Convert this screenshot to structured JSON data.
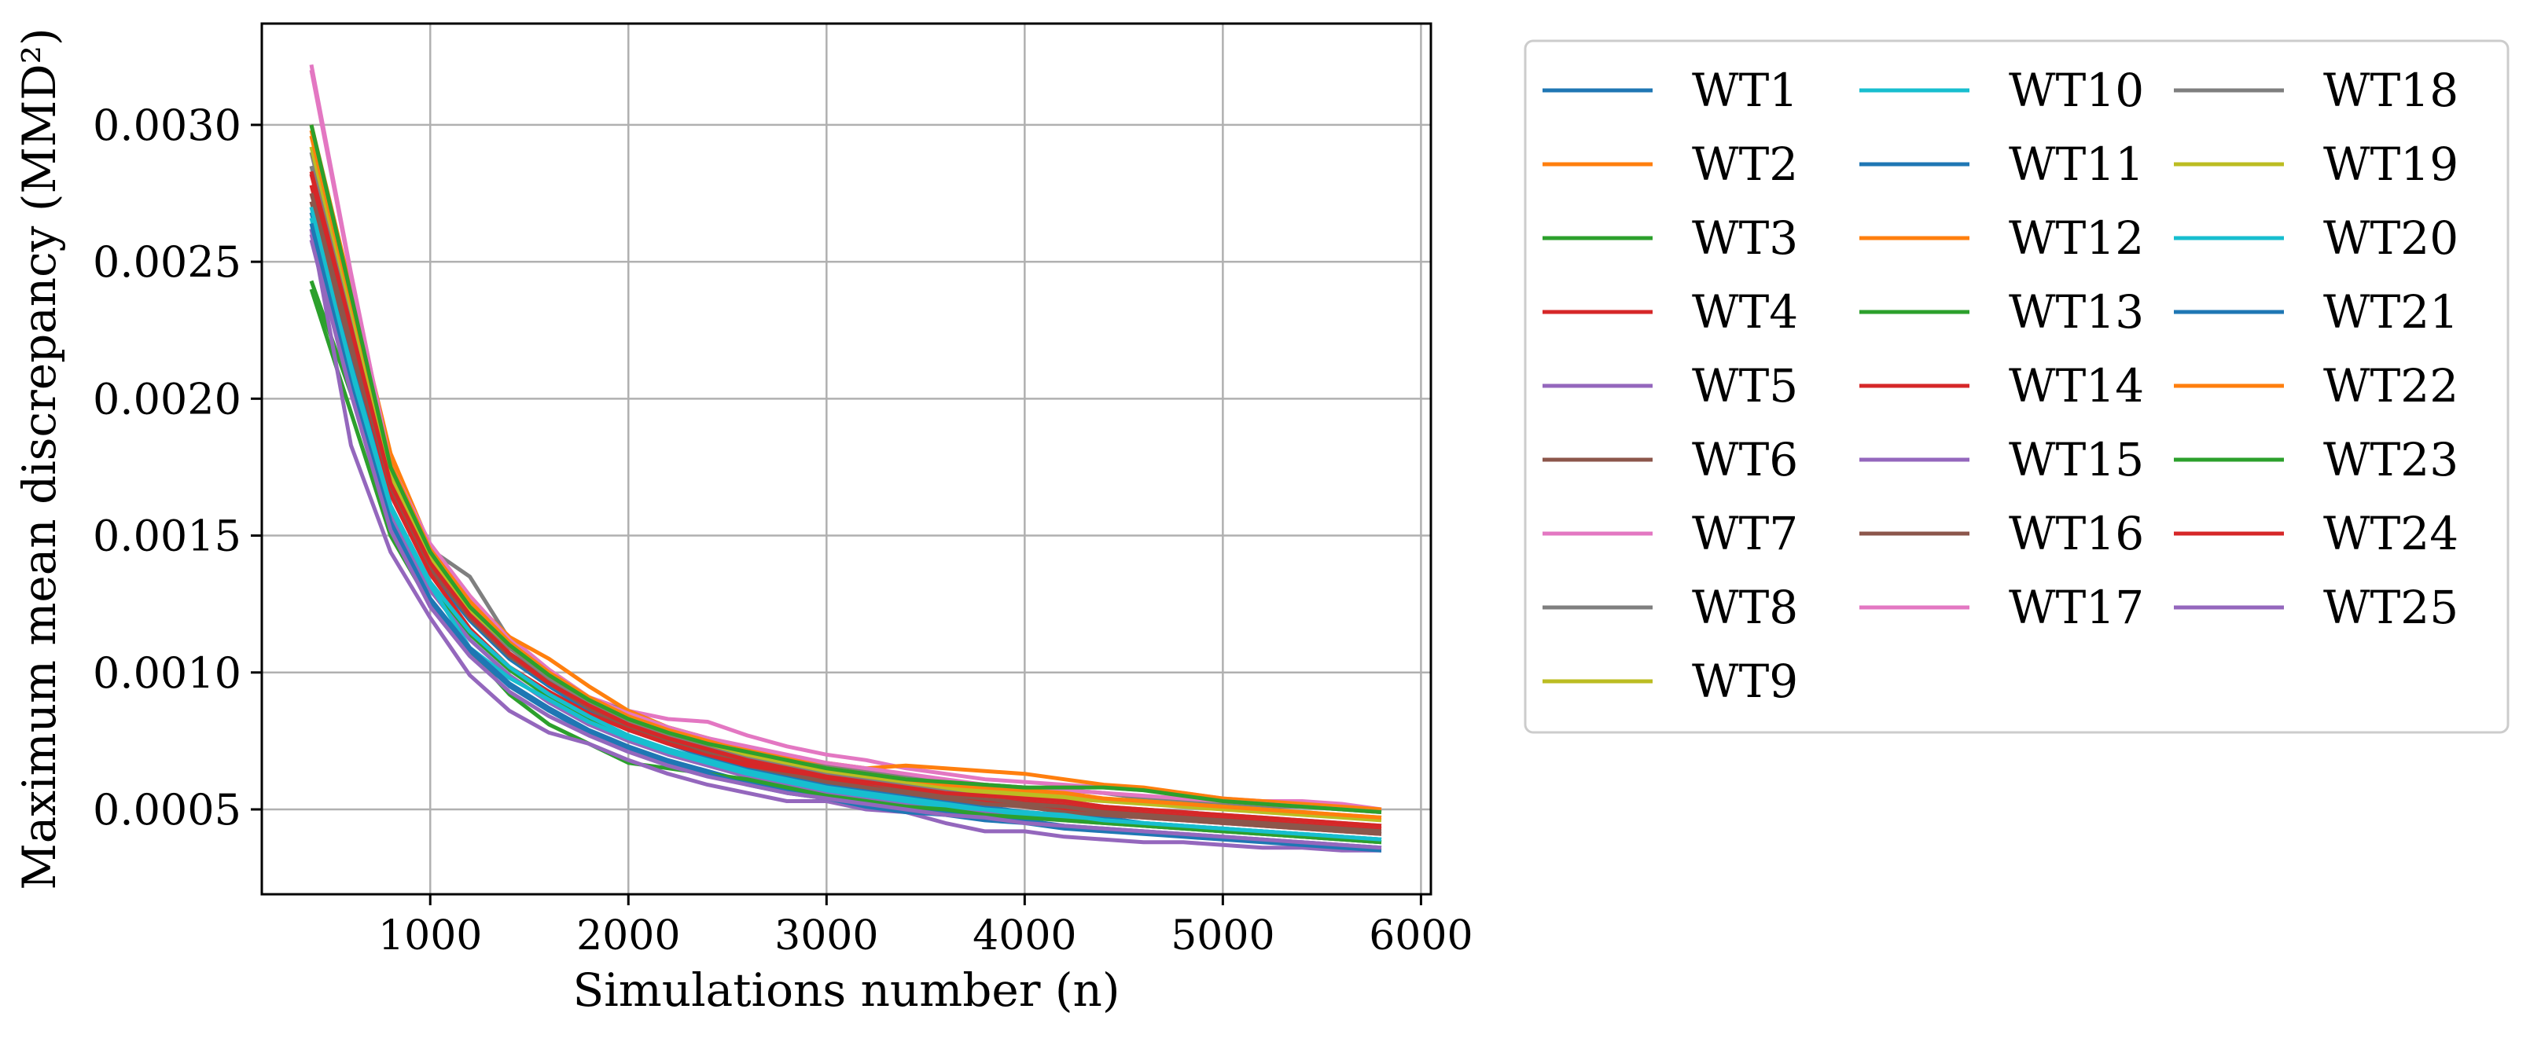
{
  "chart_data": {
    "type": "line",
    "title": "",
    "xlabel": "Simulations number (n)",
    "ylabel": "Maximum mean discrepancy (MMD²)",
    "xlim": [
      150,
      6050
    ],
    "ylim": [
      0.00019,
      0.00337
    ],
    "xticks": [
      1000,
      2000,
      3000,
      4000,
      5000,
      6000
    ],
    "xtick_labels": [
      "1000",
      "2000",
      "3000",
      "4000",
      "5000",
      "6000"
    ],
    "yticks": [
      0.0005,
      0.001,
      0.0015,
      0.002,
      0.0025,
      0.003
    ],
    "ytick_labels": [
      "0.0005",
      "0.0010",
      "0.0015",
      "0.0020",
      "0.0025",
      "0.0030"
    ],
    "grid": true,
    "legend_position": "outside-right",
    "legend_columns": 3,
    "x": [
      400,
      600,
      800,
      1000,
      1200,
      1400,
      1600,
      1800,
      2000,
      2200,
      2400,
      2600,
      2800,
      3000,
      3200,
      3400,
      3600,
      3800,
      4000,
      4200,
      4400,
      4600,
      4800,
      5000,
      5200,
      5400,
      5600,
      5800
    ],
    "series": [
      {
        "name": "WT1",
        "color": "#1f77b4",
        "values": [
          0.00268,
          0.00215,
          0.00166,
          0.00137,
          0.00119,
          0.00105,
          0.00095,
          0.00086,
          0.00079,
          0.00074,
          0.00069,
          0.00065,
          0.00062,
          0.00059,
          0.00057,
          0.00055,
          0.00053,
          0.00051,
          0.00049,
          0.00048,
          0.00047,
          0.00045,
          0.00044,
          0.00043,
          0.00042,
          0.00041,
          0.0004,
          0.00039
        ]
      },
      {
        "name": "WT2",
        "color": "#ff7f0e",
        "values": [
          0.003,
          0.0024,
          0.0018,
          0.00146,
          0.00126,
          0.00112,
          0.00101,
          0.00091,
          0.00083,
          0.00077,
          0.00073,
          0.00069,
          0.00066,
          0.00063,
          0.0006,
          0.00058,
          0.00056,
          0.00054,
          0.00053,
          0.00052,
          0.0005,
          0.00049,
          0.00048,
          0.00047,
          0.00046,
          0.00045,
          0.00044,
          0.00043
        ]
      },
      {
        "name": "WT3",
        "color": "#2ca02c",
        "values": [
          0.00243,
          0.00202,
          0.00158,
          0.00132,
          0.00114,
          0.00101,
          0.00091,
          0.00083,
          0.00076,
          0.00071,
          0.00067,
          0.00063,
          0.0006,
          0.00057,
          0.00055,
          0.00053,
          0.00051,
          0.00049,
          0.00048,
          0.00047,
          0.00046,
          0.00044,
          0.00043,
          0.00042,
          0.00041,
          0.0004,
          0.00039,
          0.00038
        ]
      },
      {
        "name": "WT4",
        "color": "#d62728",
        "values": [
          0.00282,
          0.00226,
          0.00172,
          0.00141,
          0.00121,
          0.00107,
          0.00097,
          0.00088,
          0.00081,
          0.00075,
          0.00071,
          0.00067,
          0.00064,
          0.00061,
          0.00059,
          0.00056,
          0.00054,
          0.00053,
          0.00051,
          0.0005,
          0.00048,
          0.00047,
          0.00046,
          0.00045,
          0.00044,
          0.00043,
          0.00042,
          0.00041
        ]
      },
      {
        "name": "WT5",
        "color": "#9467bd",
        "values": [
          0.0026,
          0.00205,
          0.00158,
          0.0013,
          0.00112,
          0.00099,
          0.00089,
          0.00081,
          0.00075,
          0.0007,
          0.00066,
          0.00062,
          0.00059,
          0.00056,
          0.00054,
          0.00052,
          0.0005,
          0.00049,
          0.00047,
          0.00046,
          0.00045,
          0.00044,
          0.00043,
          0.00042,
          0.00041,
          0.0004,
          0.00039,
          0.00038
        ]
      },
      {
        "name": "WT6",
        "color": "#8c564b",
        "values": [
          0.00272,
          0.00218,
          0.00167,
          0.00138,
          0.0012,
          0.00106,
          0.00096,
          0.00087,
          0.0008,
          0.00075,
          0.0007,
          0.00066,
          0.00063,
          0.0006,
          0.00058,
          0.00056,
          0.00054,
          0.00052,
          0.00051,
          0.00049,
          0.00048,
          0.00047,
          0.00046,
          0.00045,
          0.00044,
          0.00043,
          0.00042,
          0.00041
        ]
      },
      {
        "name": "WT7",
        "color": "#e377c2",
        "values": [
          0.00322,
          0.00246,
          0.00175,
          0.00146,
          0.00127,
          0.00113,
          0.00101,
          0.00091,
          0.00086,
          0.00083,
          0.00082,
          0.00077,
          0.00073,
          0.0007,
          0.00068,
          0.00065,
          0.00063,
          0.00061,
          0.0006,
          0.00059,
          0.00058,
          0.00057,
          0.00056,
          0.00054,
          0.00053,
          0.00053,
          0.00052,
          0.0005
        ]
      },
      {
        "name": "WT8",
        "color": "#7f7f7f",
        "values": [
          0.0029,
          0.0023,
          0.0017,
          0.00145,
          0.00135,
          0.00112,
          0.001,
          0.0009,
          0.00086,
          0.0008,
          0.00076,
          0.00072,
          0.00069,
          0.00066,
          0.00064,
          0.00062,
          0.0006,
          0.00059,
          0.00058,
          0.00057,
          0.00056,
          0.00054,
          0.00053,
          0.00052,
          0.00051,
          0.00051,
          0.0005,
          0.00049
        ]
      },
      {
        "name": "WT9",
        "color": "#bcbd22",
        "values": [
          0.00296,
          0.00236,
          0.00174,
          0.00144,
          0.00125,
          0.00111,
          0.00099,
          0.0009,
          0.00084,
          0.00079,
          0.00075,
          0.00071,
          0.00068,
          0.00065,
          0.00063,
          0.00061,
          0.00059,
          0.00057,
          0.00056,
          0.00055,
          0.00054,
          0.00053,
          0.00052,
          0.00051,
          0.0005,
          0.00049,
          0.00048,
          0.00047
        ]
      },
      {
        "name": "WT10",
        "color": "#17becf",
        "values": [
          0.0027,
          0.0021,
          0.0016,
          0.00132,
          0.00109,
          0.00098,
          0.0009,
          0.00082,
          0.00076,
          0.00071,
          0.00067,
          0.00063,
          0.0006,
          0.00057,
          0.00055,
          0.00053,
          0.00051,
          0.0005,
          0.00048,
          0.00047,
          0.00046,
          0.00045,
          0.00044,
          0.00043,
          0.00042,
          0.00041,
          0.0004,
          0.00039
        ]
      },
      {
        "name": "WT11",
        "color": "#1f77b4",
        "values": [
          0.00262,
          0.00205,
          0.00155,
          0.00127,
          0.00109,
          0.00096,
          0.00087,
          0.00079,
          0.00073,
          0.00068,
          0.00064,
          0.0006,
          0.00057,
          0.00055,
          0.00052,
          0.0005,
          0.00049,
          0.00047,
          0.00046,
          0.00044,
          0.00043,
          0.00042,
          0.00041,
          0.0004,
          0.00039,
          0.00038,
          0.00037,
          0.00036
        ]
      },
      {
        "name": "WT12",
        "color": "#ff7f0e",
        "values": [
          0.00298,
          0.0024,
          0.00178,
          0.00146,
          0.00127,
          0.00113,
          0.00105,
          0.00095,
          0.00086,
          0.0008,
          0.00076,
          0.00072,
          0.00069,
          0.00067,
          0.00065,
          0.00066,
          0.00065,
          0.00064,
          0.00063,
          0.00061,
          0.00059,
          0.00058,
          0.00056,
          0.00054,
          0.00053,
          0.00052,
          0.00051,
          0.0005
        ]
      },
      {
        "name": "WT13",
        "color": "#2ca02c",
        "values": [
          0.0024,
          0.00195,
          0.0015,
          0.00125,
          0.00108,
          0.00092,
          0.00081,
          0.00074,
          0.00067,
          0.00065,
          0.00063,
          0.00061,
          0.00058,
          0.00055,
          0.00053,
          0.00051,
          0.0005,
          0.00048,
          0.00047,
          0.00046,
          0.00045,
          0.00044,
          0.00043,
          0.00042,
          0.00041,
          0.0004,
          0.00039,
          0.00038
        ]
      },
      {
        "name": "WT14",
        "color": "#d62728",
        "values": [
          0.00278,
          0.00222,
          0.00165,
          0.00136,
          0.00116,
          0.00102,
          0.00093,
          0.00085,
          0.00079,
          0.00074,
          0.0007,
          0.00066,
          0.00064,
          0.00062,
          0.00061,
          0.00058,
          0.00056,
          0.00054,
          0.00053,
          0.00052,
          0.0005,
          0.00049,
          0.00048,
          0.00047,
          0.00046,
          0.00045,
          0.00044,
          0.00043
        ]
      },
      {
        "name": "WT15",
        "color": "#9467bd",
        "values": [
          0.00262,
          0.00183,
          0.00144,
          0.0012,
          0.00099,
          0.00086,
          0.00078,
          0.00074,
          0.00068,
          0.00063,
          0.00059,
          0.00056,
          0.00053,
          0.00053,
          0.0005,
          0.00049,
          0.00045,
          0.00042,
          0.00042,
          0.0004,
          0.00039,
          0.00038,
          0.00038,
          0.00037,
          0.00036,
          0.00036,
          0.00035,
          0.00035
        ]
      },
      {
        "name": "WT16",
        "color": "#8c564b",
        "values": [
          0.00275,
          0.00221,
          0.00168,
          0.00139,
          0.00121,
          0.00107,
          0.00097,
          0.00088,
          0.00081,
          0.00076,
          0.00071,
          0.00068,
          0.00065,
          0.00062,
          0.0006,
          0.00057,
          0.00055,
          0.00054,
          0.00052,
          0.00051,
          0.00049,
          0.00048,
          0.00047,
          0.00046,
          0.00045,
          0.00044,
          0.00043,
          0.00042
        ]
      },
      {
        "name": "WT17",
        "color": "#e377c2",
        "values": [
          0.0032,
          0.00245,
          0.00176,
          0.00147,
          0.00128,
          0.00112,
          0.001,
          0.00091,
          0.00085,
          0.0008,
          0.00076,
          0.00073,
          0.0007,
          0.00067,
          0.00065,
          0.00063,
          0.00061,
          0.00059,
          0.00058,
          0.00057,
          0.00056,
          0.00055,
          0.00054,
          0.00053,
          0.00052,
          0.00051,
          0.0005,
          0.00049
        ]
      },
      {
        "name": "WT18",
        "color": "#7f7f7f",
        "values": [
          0.00285,
          0.00228,
          0.0017,
          0.0014,
          0.00122,
          0.00109,
          0.00098,
          0.00089,
          0.00082,
          0.00077,
          0.00073,
          0.00069,
          0.00066,
          0.00063,
          0.00061,
          0.00059,
          0.00057,
          0.00055,
          0.00054,
          0.00053,
          0.00051,
          0.0005,
          0.00049,
          0.00048,
          0.00047,
          0.00046,
          0.00045,
          0.00044
        ]
      },
      {
        "name": "WT19",
        "color": "#bcbd22",
        "values": [
          0.00292,
          0.00233,
          0.00172,
          0.00142,
          0.00123,
          0.0011,
          0.00099,
          0.0009,
          0.00083,
          0.00078,
          0.00074,
          0.0007,
          0.00067,
          0.00064,
          0.00062,
          0.0006,
          0.00058,
          0.00056,
          0.00055,
          0.00054,
          0.00053,
          0.00052,
          0.00051,
          0.0005,
          0.00049,
          0.00048,
          0.00047,
          0.00046
        ]
      },
      {
        "name": "WT20",
        "color": "#17becf",
        "values": [
          0.00266,
          0.00212,
          0.00161,
          0.00133,
          0.00115,
          0.00102,
          0.00092,
          0.00084,
          0.00077,
          0.00072,
          0.00068,
          0.00064,
          0.00061,
          0.00058,
          0.00056,
          0.00054,
          0.00052,
          0.0005,
          0.00049,
          0.00048,
          0.00046,
          0.00045,
          0.00044,
          0.00043,
          0.00042,
          0.00041,
          0.0004,
          0.00039
        ]
      },
      {
        "name": "WT21",
        "color": "#1f77b4",
        "values": [
          0.00264,
          0.00205,
          0.00155,
          0.00126,
          0.00108,
          0.00095,
          0.00086,
          0.00078,
          0.00072,
          0.00067,
          0.00063,
          0.00059,
          0.00056,
          0.00054,
          0.00051,
          0.00049,
          0.00048,
          0.00046,
          0.00045,
          0.00043,
          0.00042,
          0.00041,
          0.0004,
          0.00039,
          0.00038,
          0.00037,
          0.00036,
          0.00035
        ]
      },
      {
        "name": "WT22",
        "color": "#ff7f0e",
        "values": [
          0.00296,
          0.00236,
          0.00176,
          0.00145,
          0.00126,
          0.00111,
          0.001,
          0.00091,
          0.00084,
          0.00079,
          0.00075,
          0.00071,
          0.00068,
          0.00065,
          0.00063,
          0.00061,
          0.00059,
          0.00058,
          0.00057,
          0.00056,
          0.00054,
          0.00053,
          0.00052,
          0.00051,
          0.0005,
          0.00049,
          0.00048,
          0.00047
        ]
      },
      {
        "name": "WT23",
        "color": "#2ca02c",
        "values": [
          0.003,
          0.00238,
          0.00175,
          0.00144,
          0.00124,
          0.0011,
          0.00099,
          0.0009,
          0.00083,
          0.00078,
          0.00074,
          0.00071,
          0.00068,
          0.00065,
          0.00063,
          0.00061,
          0.0006,
          0.00059,
          0.00058,
          0.00058,
          0.00058,
          0.00057,
          0.00055,
          0.00053,
          0.00052,
          0.00051,
          0.0005,
          0.00049
        ]
      },
      {
        "name": "WT24",
        "color": "#d62728",
        "values": [
          0.00283,
          0.00226,
          0.00169,
          0.0014,
          0.00121,
          0.00107,
          0.00096,
          0.00088,
          0.00081,
          0.00076,
          0.00072,
          0.00068,
          0.00065,
          0.00062,
          0.0006,
          0.00058,
          0.00056,
          0.00055,
          0.00054,
          0.00053,
          0.00051,
          0.0005,
          0.00049,
          0.00048,
          0.00047,
          0.00046,
          0.00045,
          0.00044
        ]
      },
      {
        "name": "WT25",
        "color": "#9467bd",
        "values": [
          0.00258,
          0.00202,
          0.00152,
          0.00124,
          0.00106,
          0.00093,
          0.00084,
          0.00077,
          0.00071,
          0.00066,
          0.00062,
          0.00059,
          0.00056,
          0.00054,
          0.00052,
          0.0005,
          0.00048,
          0.00047,
          0.00045,
          0.00044,
          0.00043,
          0.00042,
          0.00041,
          0.0004,
          0.00039,
          0.00038,
          0.00037,
          0.00036
        ]
      }
    ]
  }
}
